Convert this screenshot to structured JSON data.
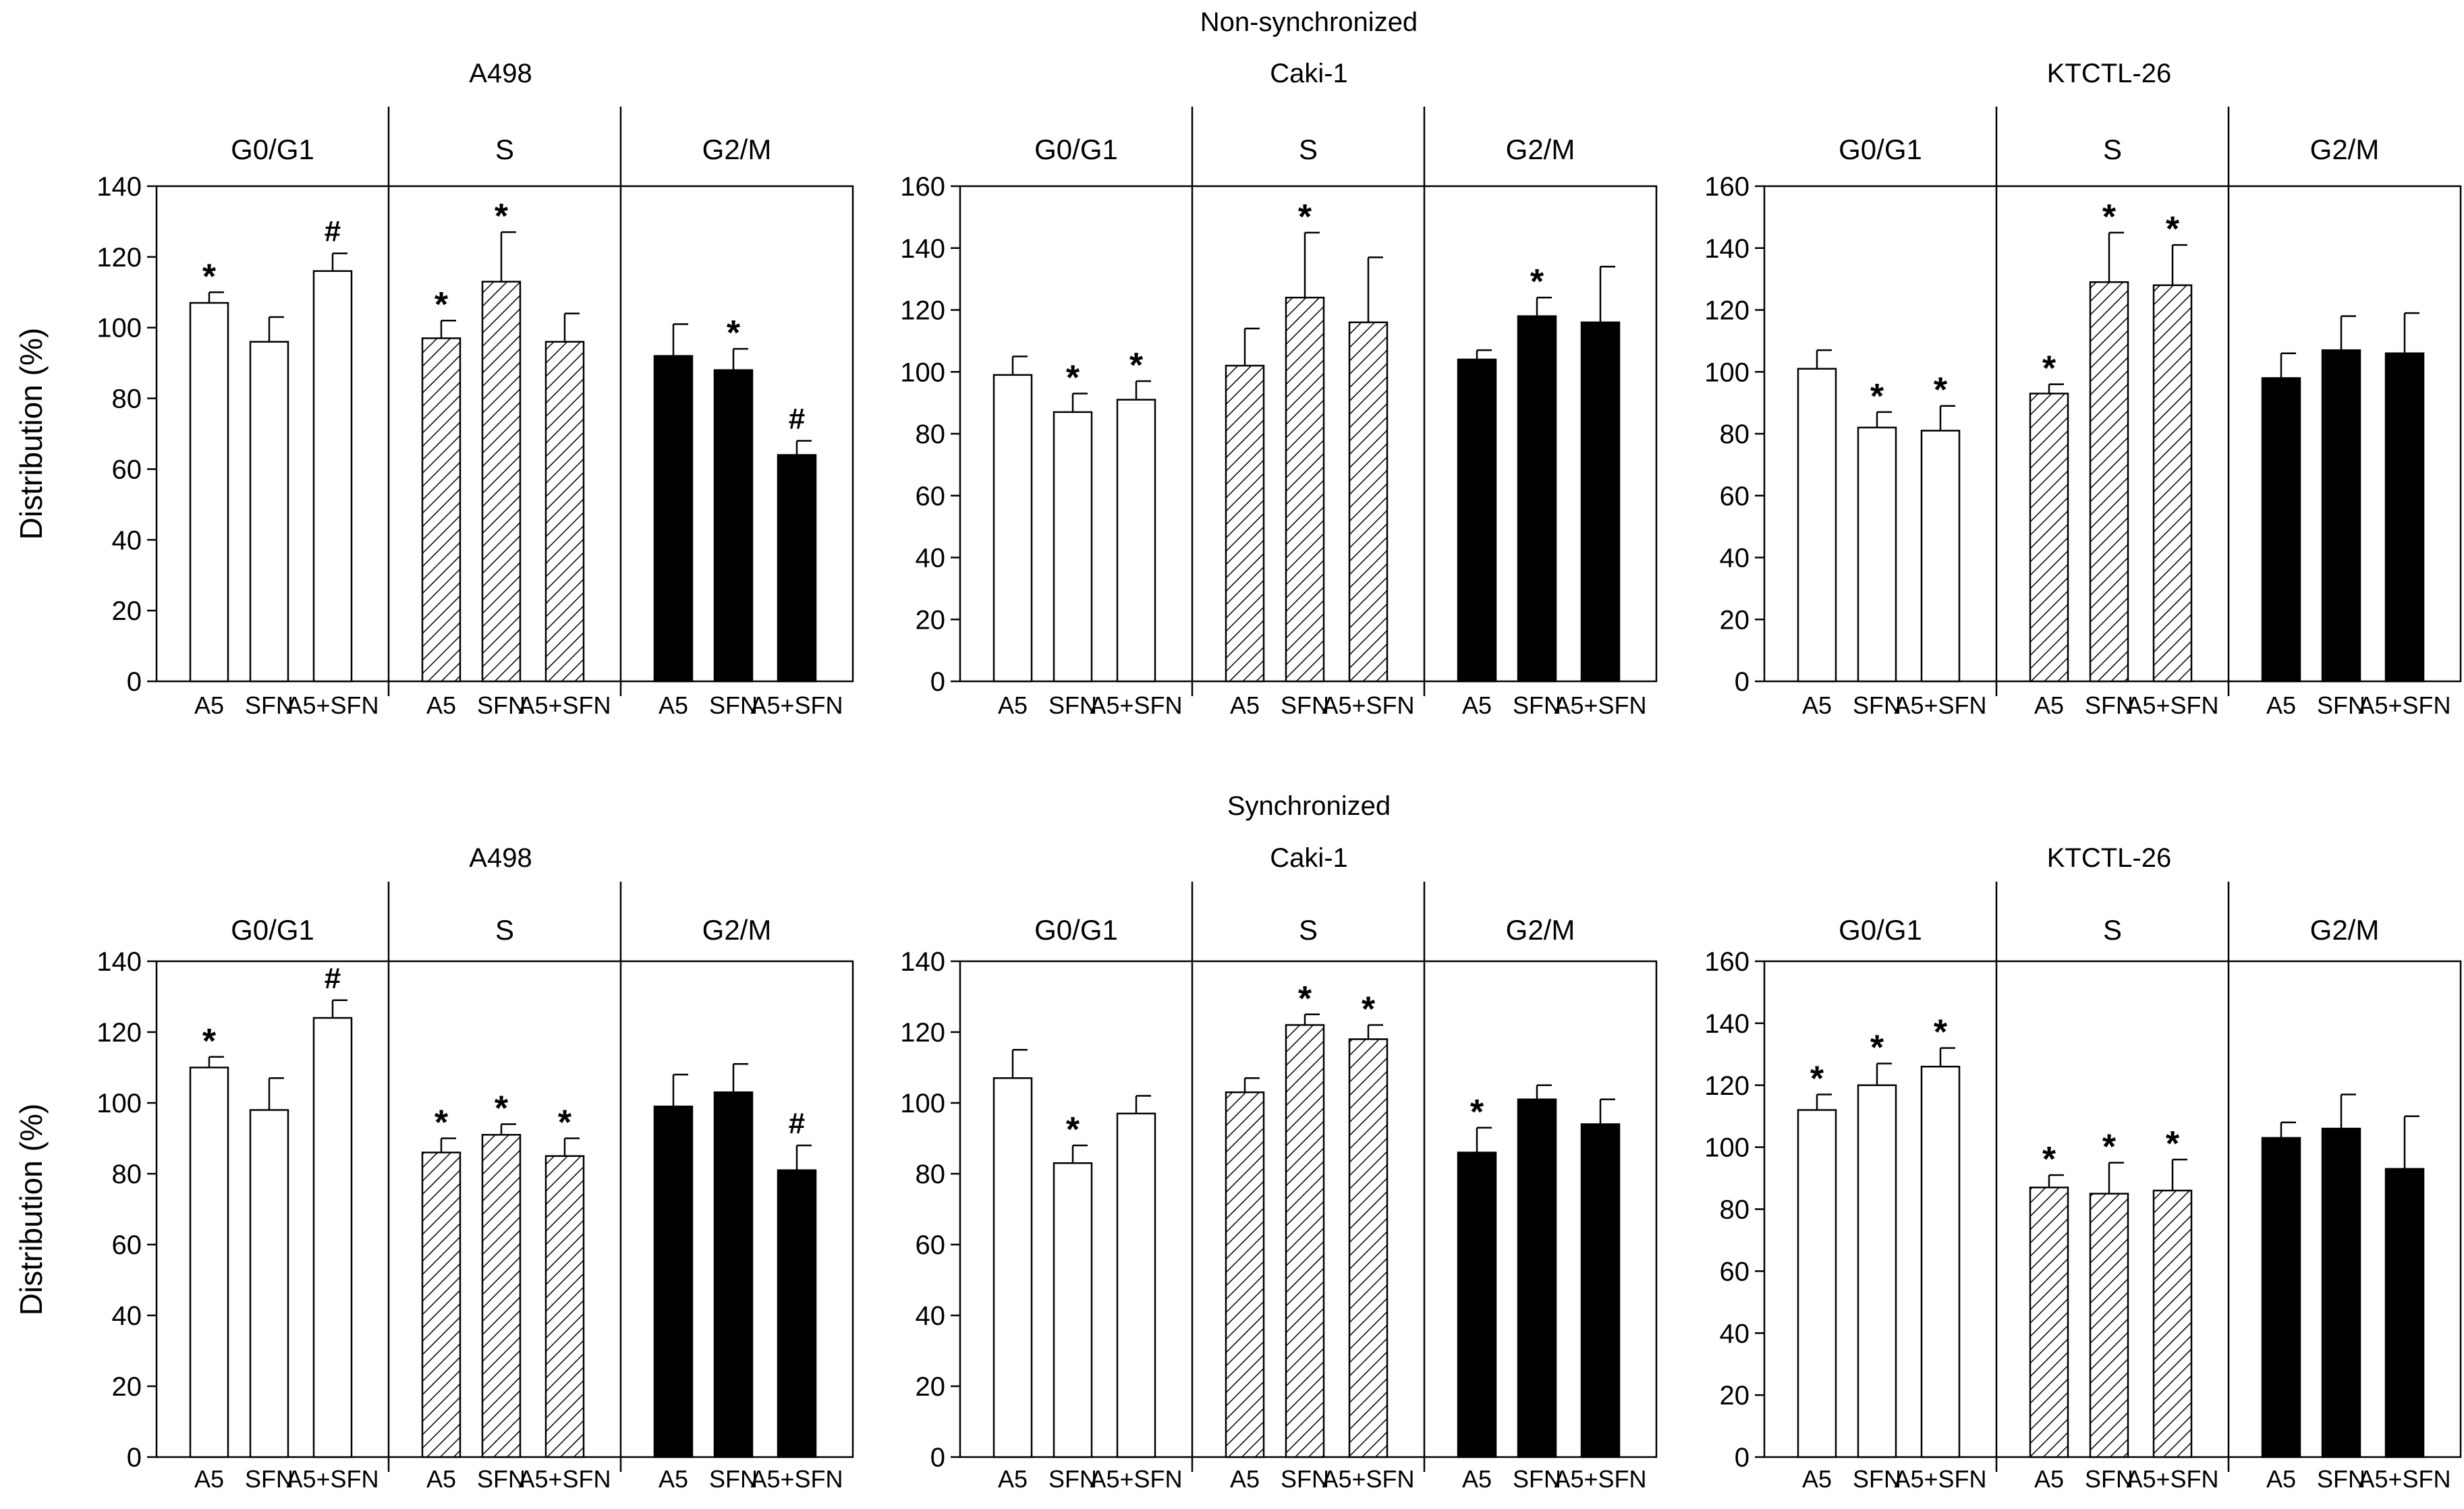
{
  "figure": {
    "sections": [
      {
        "title": "Non-synchronized",
        "ylabel": "Distribution (%)",
        "panels": [
          {
            "cell_line": "A498",
            "ylim": [
              0,
              140
            ],
            "yticks": [
              0,
              20,
              40,
              60,
              80,
              100,
              120,
              140
            ],
            "groups": [
              {
                "phase": "G0/G1",
                "style": "white",
                "bars": [
                  {
                    "label": "A5",
                    "value": 107,
                    "err": 3,
                    "mark": "*"
                  },
                  {
                    "label": "SFN",
                    "value": 96,
                    "err": 7,
                    "mark": ""
                  },
                  {
                    "label": "A5+SFN",
                    "value": 116,
                    "err": 5,
                    "mark": "#"
                  }
                ]
              },
              {
                "phase": "S",
                "style": "hatched",
                "bars": [
                  {
                    "label": "A5",
                    "value": 97,
                    "err": 5,
                    "mark": "*"
                  },
                  {
                    "label": "SFN",
                    "value": 113,
                    "err": 14,
                    "mark": "*"
                  },
                  {
                    "label": "A5+SFN",
                    "value": 96,
                    "err": 8,
                    "mark": ""
                  }
                ]
              },
              {
                "phase": "G2/M",
                "style": "black",
                "bars": [
                  {
                    "label": "A5",
                    "value": 92,
                    "err": 9,
                    "mark": ""
                  },
                  {
                    "label": "SFN",
                    "value": 88,
                    "err": 6,
                    "mark": "*"
                  },
                  {
                    "label": "A5+SFN",
                    "value": 64,
                    "err": 4,
                    "mark": "#"
                  }
                ]
              }
            ]
          },
          {
            "cell_line": "Caki-1",
            "ylim": [
              0,
              160
            ],
            "yticks": [
              0,
              20,
              40,
              60,
              80,
              100,
              120,
              140,
              160
            ],
            "groups": [
              {
                "phase": "G0/G1",
                "style": "white",
                "bars": [
                  {
                    "label": "A5",
                    "value": 99,
                    "err": 6,
                    "mark": ""
                  },
                  {
                    "label": "SFN",
                    "value": 87,
                    "err": 6,
                    "mark": "*"
                  },
                  {
                    "label": "A5+SFN",
                    "value": 91,
                    "err": 6,
                    "mark": "*"
                  }
                ]
              },
              {
                "phase": "S",
                "style": "hatched",
                "bars": [
                  {
                    "label": "A5",
                    "value": 102,
                    "err": 12,
                    "mark": ""
                  },
                  {
                    "label": "SFN",
                    "value": 124,
                    "err": 21,
                    "mark": "*"
                  },
                  {
                    "label": "A5+SFN",
                    "value": 116,
                    "err": 21,
                    "mark": ""
                  }
                ]
              },
              {
                "phase": "G2/M",
                "style": "black",
                "bars": [
                  {
                    "label": "A5",
                    "value": 104,
                    "err": 3,
                    "mark": ""
                  },
                  {
                    "label": "SFN",
                    "value": 118,
                    "err": 6,
                    "mark": "*"
                  },
                  {
                    "label": "A5+SFN",
                    "value": 116,
                    "err": 18,
                    "mark": ""
                  }
                ]
              }
            ]
          },
          {
            "cell_line": "KTCTL-26",
            "ylim": [
              0,
              160
            ],
            "yticks": [
              0,
              20,
              40,
              60,
              80,
              100,
              120,
              140,
              160
            ],
            "groups": [
              {
                "phase": "G0/G1",
                "style": "white",
                "bars": [
                  {
                    "label": "A5",
                    "value": 101,
                    "err": 6,
                    "mark": ""
                  },
                  {
                    "label": "SFN",
                    "value": 82,
                    "err": 5,
                    "mark": "*"
                  },
                  {
                    "label": "A5+SFN",
                    "value": 81,
                    "err": 8,
                    "mark": "*"
                  }
                ]
              },
              {
                "phase": "S",
                "style": "hatched",
                "bars": [
                  {
                    "label": "A5",
                    "value": 93,
                    "err": 3,
                    "mark": "*"
                  },
                  {
                    "label": "SFN",
                    "value": 129,
                    "err": 16,
                    "mark": "*"
                  },
                  {
                    "label": "A5+SFN",
                    "value": 128,
                    "err": 13,
                    "mark": "*"
                  }
                ]
              },
              {
                "phase": "G2/M",
                "style": "black",
                "bars": [
                  {
                    "label": "A5",
                    "value": 98,
                    "err": 8,
                    "mark": ""
                  },
                  {
                    "label": "SFN",
                    "value": 107,
                    "err": 11,
                    "mark": ""
                  },
                  {
                    "label": "A5+SFN",
                    "value": 106,
                    "err": 13,
                    "mark": ""
                  }
                ]
              }
            ]
          }
        ]
      },
      {
        "title": "Synchronized",
        "ylabel": "Distribution (%)",
        "panels": [
          {
            "cell_line": "A498",
            "ylim": [
              0,
              140
            ],
            "yticks": [
              0,
              20,
              40,
              60,
              80,
              100,
              120,
              140
            ],
            "groups": [
              {
                "phase": "G0/G1",
                "style": "white",
                "bars": [
                  {
                    "label": "A5",
                    "value": 110,
                    "err": 3,
                    "mark": "*"
                  },
                  {
                    "label": "SFN",
                    "value": 98,
                    "err": 9,
                    "mark": ""
                  },
                  {
                    "label": "A5+SFN",
                    "value": 124,
                    "err": 5,
                    "mark": "#"
                  }
                ]
              },
              {
                "phase": "S",
                "style": "hatched",
                "bars": [
                  {
                    "label": "A5",
                    "value": 86,
                    "err": 4,
                    "mark": "*"
                  },
                  {
                    "label": "SFN",
                    "value": 91,
                    "err": 3,
                    "mark": "*"
                  },
                  {
                    "label": "A5+SFN",
                    "value": 85,
                    "err": 5,
                    "mark": "*"
                  }
                ]
              },
              {
                "phase": "G2/M",
                "style": "black",
                "bars": [
                  {
                    "label": "A5",
                    "value": 99,
                    "err": 9,
                    "mark": ""
                  },
                  {
                    "label": "SFN",
                    "value": 103,
                    "err": 8,
                    "mark": ""
                  },
                  {
                    "label": "A5+SFN",
                    "value": 81,
                    "err": 7,
                    "mark": "#"
                  }
                ]
              }
            ]
          },
          {
            "cell_line": "Caki-1",
            "ylim": [
              0,
              140
            ],
            "yticks": [
              0,
              20,
              40,
              60,
              80,
              100,
              120,
              140
            ],
            "groups": [
              {
                "phase": "G0/G1",
                "style": "white",
                "bars": [
                  {
                    "label": "A5",
                    "value": 107,
                    "err": 8,
                    "mark": ""
                  },
                  {
                    "label": "SFN",
                    "value": 83,
                    "err": 5,
                    "mark": "*"
                  },
                  {
                    "label": "A5+SFN",
                    "value": 97,
                    "err": 5,
                    "mark": ""
                  }
                ]
              },
              {
                "phase": "S",
                "style": "hatched",
                "bars": [
                  {
                    "label": "A5",
                    "value": 103,
                    "err": 4,
                    "mark": ""
                  },
                  {
                    "label": "SFN",
                    "value": 122,
                    "err": 3,
                    "mark": "*"
                  },
                  {
                    "label": "A5+SFN",
                    "value": 118,
                    "err": 4,
                    "mark": "*"
                  }
                ]
              },
              {
                "phase": "G2/M",
                "style": "black",
                "bars": [
                  {
                    "label": "A5",
                    "value": 86,
                    "err": 7,
                    "mark": "*"
                  },
                  {
                    "label": "SFN",
                    "value": 101,
                    "err": 4,
                    "mark": ""
                  },
                  {
                    "label": "A5+SFN",
                    "value": 94,
                    "err": 7,
                    "mark": ""
                  }
                ]
              }
            ]
          },
          {
            "cell_line": "KTCTL-26",
            "ylim": [
              0,
              160
            ],
            "yticks": [
              0,
              20,
              40,
              60,
              80,
              100,
              120,
              140,
              160
            ],
            "groups": [
              {
                "phase": "G0/G1",
                "style": "white",
                "bars": [
                  {
                    "label": "A5",
                    "value": 112,
                    "err": 5,
                    "mark": "*"
                  },
                  {
                    "label": "SFN",
                    "value": 120,
                    "err": 7,
                    "mark": "*"
                  },
                  {
                    "label": "A5+SFN",
                    "value": 126,
                    "err": 6,
                    "mark": "*"
                  }
                ]
              },
              {
                "phase": "S",
                "style": "hatched",
                "bars": [
                  {
                    "label": "A5",
                    "value": 87,
                    "err": 4,
                    "mark": "*"
                  },
                  {
                    "label": "SFN",
                    "value": 85,
                    "err": 10,
                    "mark": "*"
                  },
                  {
                    "label": "A5+SFN",
                    "value": 86,
                    "err": 10,
                    "mark": "*"
                  }
                ]
              },
              {
                "phase": "G2/M",
                "style": "black",
                "bars": [
                  {
                    "label": "A5",
                    "value": 103,
                    "err": 5,
                    "mark": ""
                  },
                  {
                    "label": "SFN",
                    "value": 106,
                    "err": 11,
                    "mark": ""
                  },
                  {
                    "label": "A5+SFN",
                    "value": 93,
                    "err": 17,
                    "mark": ""
                  }
                ]
              }
            ]
          }
        ]
      }
    ]
  },
  "chart_data": [
    {
      "type": "bar",
      "title": "Non-synchronized – A498",
      "ylabel": "Distribution (%)",
      "ylim": [
        0,
        140
      ],
      "categories": [
        "A5",
        "SFN",
        "A5+SFN"
      ],
      "series": [
        {
          "name": "G0/G1",
          "values": [
            107,
            96,
            116
          ]
        },
        {
          "name": "S",
          "values": [
            97,
            113,
            96
          ]
        },
        {
          "name": "G2/M",
          "values": [
            92,
            88,
            64
          ]
        }
      ]
    },
    {
      "type": "bar",
      "title": "Non-synchronized – Caki-1",
      "ylabel": "Distribution (%)",
      "ylim": [
        0,
        160
      ],
      "categories": [
        "A5",
        "SFN",
        "A5+SFN"
      ],
      "series": [
        {
          "name": "G0/G1",
          "values": [
            99,
            87,
            91
          ]
        },
        {
          "name": "S",
          "values": [
            102,
            124,
            116
          ]
        },
        {
          "name": "G2/M",
          "values": [
            104,
            118,
            116
          ]
        }
      ]
    },
    {
      "type": "bar",
      "title": "Non-synchronized – KTCTL-26",
      "ylabel": "Distribution (%)",
      "ylim": [
        0,
        160
      ],
      "categories": [
        "A5",
        "SFN",
        "A5+SFN"
      ],
      "series": [
        {
          "name": "G0/G1",
          "values": [
            101,
            82,
            81
          ]
        },
        {
          "name": "S",
          "values": [
            93,
            129,
            128
          ]
        },
        {
          "name": "G2/M",
          "values": [
            98,
            107,
            106
          ]
        }
      ]
    },
    {
      "type": "bar",
      "title": "Synchronized – A498",
      "ylabel": "Distribution (%)",
      "ylim": [
        0,
        140
      ],
      "categories": [
        "A5",
        "SFN",
        "A5+SFN"
      ],
      "series": [
        {
          "name": "G0/G1",
          "values": [
            110,
            98,
            124
          ]
        },
        {
          "name": "S",
          "values": [
            86,
            91,
            85
          ]
        },
        {
          "name": "G2/M",
          "values": [
            99,
            103,
            81
          ]
        }
      ]
    },
    {
      "type": "bar",
      "title": "Synchronized – Caki-1",
      "ylabel": "Distribution (%)",
      "ylim": [
        0,
        140
      ],
      "categories": [
        "A5",
        "SFN",
        "A5+SFN"
      ],
      "series": [
        {
          "name": "G0/G1",
          "values": [
            107,
            83,
            97
          ]
        },
        {
          "name": "S",
          "values": [
            103,
            122,
            118
          ]
        },
        {
          "name": "G2/M",
          "values": [
            86,
            101,
            94
          ]
        }
      ]
    },
    {
      "type": "bar",
      "title": "Synchronized – KTCTL-26",
      "ylabel": "Distribution (%)",
      "ylim": [
        0,
        160
      ],
      "categories": [
        "A5",
        "SFN",
        "A5+SFN"
      ],
      "series": [
        {
          "name": "G0/G1",
          "values": [
            112,
            120,
            126
          ]
        },
        {
          "name": "S",
          "values": [
            87,
            85,
            86
          ]
        },
        {
          "name": "G2/M",
          "values": [
            103,
            106,
            93
          ]
        }
      ]
    }
  ]
}
